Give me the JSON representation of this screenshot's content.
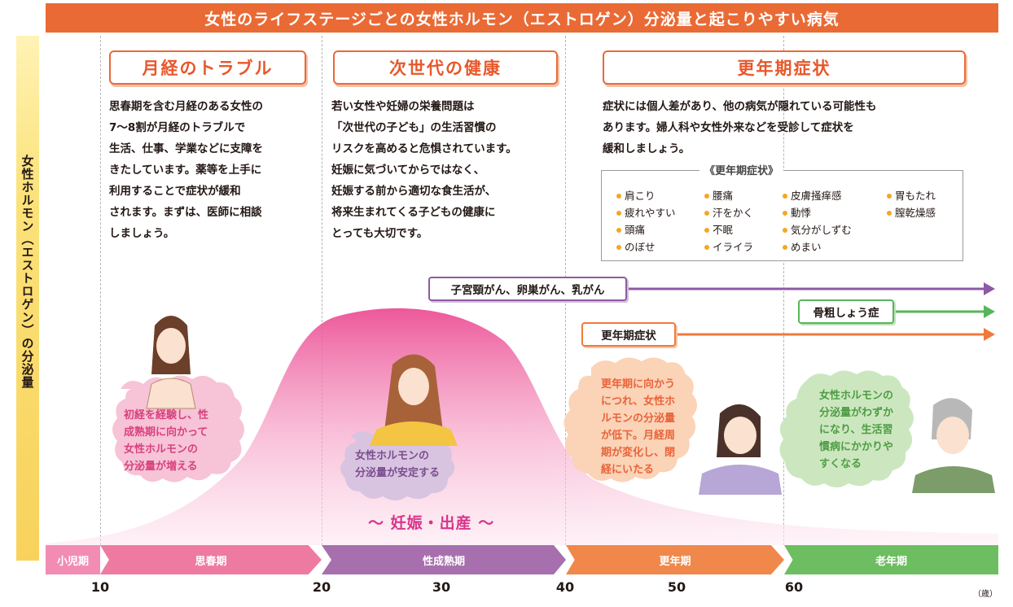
{
  "title": "女性のライフステージごとの女性ホルモン（エストロゲン）分泌量と起こりやすい病気",
  "y_axis_label": "女性ホルモン（エストロゲン）の分泌量",
  "sections": [
    {
      "title": "月経のトラブル",
      "lines": [
        "思春期を含む月経のある女性の",
        "7〜8割が月経のトラブルで",
        "生活、仕事、学業などに支障を",
        "きたしています。薬等を上手に",
        "利用することで症状が緩和",
        "されます。まずは、医師に相談",
        "しましょう。"
      ]
    },
    {
      "title": "次世代の健康",
      "lines": [
        "若い女性や妊婦の栄養問題は",
        "「次世代の子ども」の生活習慣の",
        "リスクを高めると危惧されています。",
        "妊娠に気づいてからではなく、",
        "妊娠する前から適切な食生活が、",
        "将来生まれてくる子どもの健康に",
        "とっても大切です。"
      ]
    },
    {
      "title": "更年期症状",
      "lines": [
        "症状には個人差があり、他の病気が隠れている可能性も",
        "あります。婦人科や女性外来などを受診して症状を",
        "緩和しましょう。"
      ]
    }
  ],
  "symptoms": {
    "title": "《更年期症状》",
    "items": [
      "肩こり",
      "疲れやすい",
      "頭痛",
      "のぼせ",
      "腰痛",
      "汗をかく",
      "不眠",
      "イライラ",
      "皮膚掻痒感",
      "動悸",
      "気分がしずむ",
      "めまい",
      "胃もたれ",
      "膣乾燥感"
    ]
  },
  "diseases": [
    {
      "label": "子宮頸がん、卵巣がん、乳がん",
      "color": "#8e5aa4"
    },
    {
      "label": "骨粗しょう症",
      "color": "#56b65a"
    },
    {
      "label": "更年期症状",
      "color": "#ef7a3d"
    }
  ],
  "bubbles": [
    {
      "lines": [
        "初経を経験し、性",
        "成熟期に向かって",
        "女性ホルモンの",
        "分泌量が増える"
      ],
      "color": "#d8417e"
    },
    {
      "lines": [
        "女性ホルモンの",
        "分泌量が安定する"
      ],
      "color": "#7b4e8f"
    },
    {
      "lines": [
        "更年期に向かう",
        "につれ、女性ホ",
        "ルモンの分泌量",
        "が低下。月経周",
        "期が変化し、閉",
        "経にいたる"
      ],
      "color": "#e8643a"
    },
    {
      "lines": [
        "女性ホルモンの",
        "分泌量がわずか",
        "になり、生活習",
        "慣病にかかりや",
        "すくなる"
      ],
      "color": "#4e9c45"
    }
  ],
  "birth_label": "〜 妊娠・出産 〜",
  "stages": [
    {
      "label": "小児期",
      "color": "#f28cb3"
    },
    {
      "label": "思春期",
      "color": "#ee7aa2"
    },
    {
      "label": "性成熟期",
      "color": "#a76fae"
    },
    {
      "label": "更年期",
      "color": "#f0884b"
    },
    {
      "label": "老年期",
      "color": "#6dbd61"
    }
  ],
  "ticks": [
    "10",
    "20",
    "30",
    "40",
    "50",
    "60"
  ],
  "unit": "（歳）",
  "colors": {
    "title_bg": "#ea6a35",
    "curve": "#ec4f95",
    "section_border": "#e8693a"
  }
}
